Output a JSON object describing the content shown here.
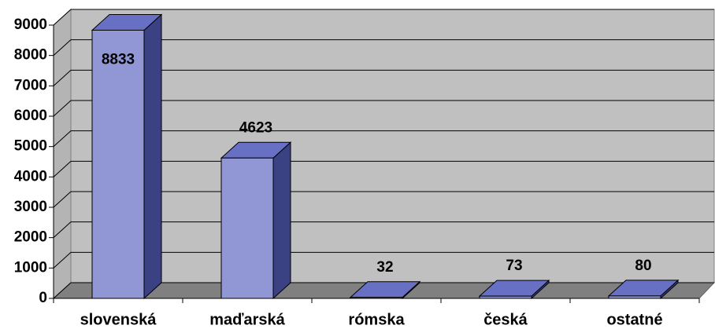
{
  "chart_data": {
    "type": "bar3d",
    "categories": [
      "slovenská",
      "maďarská",
      "rómska",
      "česká",
      "ostatné"
    ],
    "values": [
      8833,
      4623,
      32,
      73,
      80
    ],
    "color": "#9097d4",
    "ylim": [
      0,
      9000
    ],
    "yticks": [
      0,
      1000,
      2000,
      3000,
      4000,
      5000,
      6000,
      7000,
      8000,
      9000
    ],
    "grid": true
  }
}
